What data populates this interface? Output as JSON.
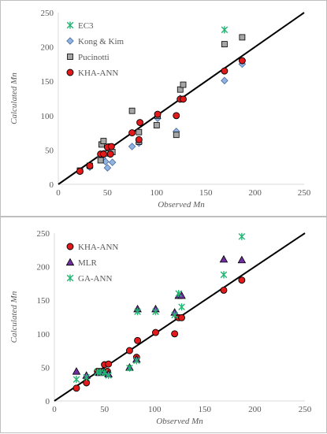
{
  "chart_data": [
    {
      "type": "scatter",
      "title": "",
      "xlabel": "Observed Mn",
      "ylabel": "Calculated Mn",
      "xlim": [
        0,
        250
      ],
      "ylim": [
        0,
        250
      ],
      "x_ticks": [
        "0",
        "50",
        "100",
        "150",
        "200",
        "250"
      ],
      "y_ticks": [
        "0",
        "50",
        "100",
        "150",
        "200",
        "250"
      ],
      "reference_line": "y = x",
      "grid": false,
      "legend_position": "top-left",
      "series": [
        {
          "name": "EC3",
          "marker": "asterisk",
          "color": "#22b573",
          "points": [
            [
              169,
              225
            ]
          ]
        },
        {
          "name": "Kong & Kim",
          "marker": "diamond",
          "color": "#8fb4e3",
          "points": [
            [
              22,
              19
            ],
            [
              32,
              25
            ],
            [
              43,
              40
            ],
            [
              45,
              38
            ],
            [
              48,
              33
            ],
            [
              50,
              24
            ],
            [
              55,
              32
            ],
            [
              75,
              55
            ],
            [
              82,
              60
            ],
            [
              101,
              96
            ],
            [
              120,
              77
            ],
            [
              124,
              125
            ],
            [
              169,
              151
            ],
            [
              187,
              175
            ]
          ]
        },
        {
          "name": "Pucinotti",
          "marker": "square",
          "color": "#a6a6a6",
          "points": [
            [
              22,
              20
            ],
            [
              32,
              27
            ],
            [
              43,
              35
            ],
            [
              44,
              58
            ],
            [
              46,
              63
            ],
            [
              48,
              45
            ],
            [
              53,
              55
            ],
            [
              55,
              47
            ],
            [
              75,
              107
            ],
            [
              82,
              62
            ],
            [
              82,
              76
            ],
            [
              100,
              86
            ],
            [
              101,
              100
            ],
            [
              120,
              72
            ],
            [
              124,
              138
            ],
            [
              127,
              145
            ],
            [
              169,
              204
            ],
            [
              187,
              214
            ]
          ]
        },
        {
          "name": "KHA-ANN",
          "marker": "circle",
          "color": "#e31a1c",
          "points": [
            [
              22,
              19
            ],
            [
              32,
              27
            ],
            [
              43,
              44
            ],
            [
              46,
              44
            ],
            [
              50,
              54
            ],
            [
              53,
              44
            ],
            [
              54,
              55
            ],
            [
              75,
              75
            ],
            [
              82,
              65
            ],
            [
              83,
              90
            ],
            [
              101,
              102
            ],
            [
              120,
              100
            ],
            [
              124,
              124
            ],
            [
              127,
              124
            ],
            [
              169,
              165
            ],
            [
              187,
              180
            ]
          ]
        }
      ]
    },
    {
      "type": "scatter",
      "title": "",
      "xlabel": "Observed Mn",
      "ylabel": "Calculated Mn",
      "xlim": [
        0,
        250
      ],
      "ylim": [
        0,
        250
      ],
      "x_ticks": [
        "0",
        "50",
        "100",
        "150",
        "200",
        "250"
      ],
      "y_ticks": [
        "0",
        "50",
        "100",
        "150",
        "200",
        "250"
      ],
      "reference_line": "y = x",
      "grid": false,
      "legend_position": "top-left",
      "series": [
        {
          "name": "KHA-ANN",
          "marker": "circle",
          "color": "#e31a1c",
          "points": [
            [
              22,
              19
            ],
            [
              32,
              27
            ],
            [
              43,
              44
            ],
            [
              46,
              44
            ],
            [
              50,
              54
            ],
            [
              53,
              44
            ],
            [
              54,
              55
            ],
            [
              75,
              75
            ],
            [
              82,
              65
            ],
            [
              83,
              90
            ],
            [
              101,
              102
            ],
            [
              120,
              100
            ],
            [
              124,
              124
            ],
            [
              127,
              124
            ],
            [
              169,
              165
            ],
            [
              187,
              180
            ]
          ]
        },
        {
          "name": "MLR",
          "marker": "triangle",
          "color": "#7030a0",
          "points": [
            [
              22,
              44
            ],
            [
              32,
              38
            ],
            [
              43,
              43
            ],
            [
              45,
              42
            ],
            [
              48,
              44
            ],
            [
              50,
              43
            ],
            [
              54,
              40
            ],
            [
              75,
              50
            ],
            [
              82,
              62
            ],
            [
              83,
              137
            ],
            [
              101,
              137
            ],
            [
              120,
              132
            ],
            [
              124,
              157
            ],
            [
              127,
              157
            ],
            [
              169,
              211
            ],
            [
              187,
              210
            ]
          ]
        },
        {
          "name": "GA-ANN",
          "marker": "asterisk",
          "color": "#22b573",
          "points": [
            [
              22,
              32
            ],
            [
              32,
              35
            ],
            [
              43,
              43
            ],
            [
              46,
              43
            ],
            [
              50,
              42
            ],
            [
              54,
              38
            ],
            [
              75,
              49
            ],
            [
              82,
              60
            ],
            [
              83,
              133
            ],
            [
              101,
              133
            ],
            [
              120,
              128
            ],
            [
              124,
              160
            ],
            [
              127,
              140
            ],
            [
              169,
              188
            ],
            [
              187,
              245
            ]
          ]
        }
      ]
    }
  ]
}
